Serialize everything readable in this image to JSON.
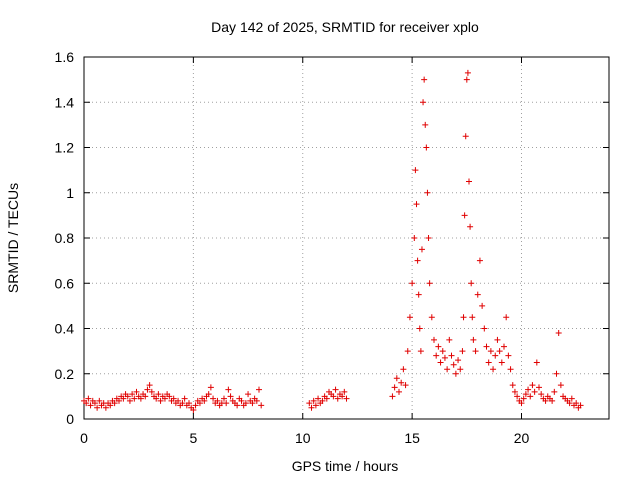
{
  "chart_data": {
    "type": "scatter",
    "title": "Day 142 of 2025, SRMTID for receiver xplo",
    "xlabel": "GPS time / hours",
    "ylabel": "SRMTID / TECUs",
    "xlim": [
      0,
      24
    ],
    "ylim": [
      0,
      1.6
    ],
    "xticks": [
      0,
      5,
      10,
      15,
      20
    ],
    "xtick_labels": [
      "0",
      "5",
      "10",
      "15",
      "20"
    ],
    "yticks": [
      0,
      0.2,
      0.4,
      0.6,
      0.8,
      1,
      1.2,
      1.4,
      1.6
    ],
    "ytick_labels": [
      "0",
      "0.2",
      "0.4",
      "0.6",
      "0.8",
      "1",
      "1.2",
      "1.4",
      "1.6"
    ],
    "grid": true,
    "marker": "plus",
    "color": "#e00000",
    "series": [
      {
        "name": "SRMTID",
        "points": [
          [
            0.0,
            0.08
          ],
          [
            0.1,
            0.07
          ],
          [
            0.2,
            0.09
          ],
          [
            0.3,
            0.06
          ],
          [
            0.4,
            0.08
          ],
          [
            0.5,
            0.07
          ],
          [
            0.6,
            0.05
          ],
          [
            0.7,
            0.08
          ],
          [
            0.8,
            0.06
          ],
          [
            0.9,
            0.07
          ],
          [
            1.0,
            0.05
          ],
          [
            1.1,
            0.07
          ],
          [
            1.2,
            0.06
          ],
          [
            1.3,
            0.08
          ],
          [
            1.4,
            0.07
          ],
          [
            1.5,
            0.09
          ],
          [
            1.6,
            0.08
          ],
          [
            1.7,
            0.1
          ],
          [
            1.8,
            0.09
          ],
          [
            1.9,
            0.11
          ],
          [
            2.0,
            0.1
          ],
          [
            2.1,
            0.08
          ],
          [
            2.2,
            0.11
          ],
          [
            2.3,
            0.09
          ],
          [
            2.4,
            0.12
          ],
          [
            2.5,
            0.1
          ],
          [
            2.6,
            0.09
          ],
          [
            2.7,
            0.11
          ],
          [
            2.8,
            0.1
          ],
          [
            2.9,
            0.13
          ],
          [
            3.0,
            0.15
          ],
          [
            3.1,
            0.12
          ],
          [
            3.2,
            0.1
          ],
          [
            3.3,
            0.09
          ],
          [
            3.4,
            0.11
          ],
          [
            3.5,
            0.08
          ],
          [
            3.6,
            0.1
          ],
          [
            3.7,
            0.09
          ],
          [
            3.8,
            0.11
          ],
          [
            3.9,
            0.1
          ],
          [
            4.0,
            0.08
          ],
          [
            4.1,
            0.09
          ],
          [
            4.2,
            0.07
          ],
          [
            4.3,
            0.08
          ],
          [
            4.4,
            0.06
          ],
          [
            4.5,
            0.07
          ],
          [
            4.6,
            0.09
          ],
          [
            4.7,
            0.06
          ],
          [
            4.8,
            0.07
          ],
          [
            4.9,
            0.05
          ],
          [
            5.0,
            0.04
          ],
          [
            5.1,
            0.06
          ],
          [
            5.2,
            0.08
          ],
          [
            5.3,
            0.07
          ],
          [
            5.4,
            0.09
          ],
          [
            5.5,
            0.08
          ],
          [
            5.6,
            0.1
          ],
          [
            5.7,
            0.11
          ],
          [
            5.8,
            0.14
          ],
          [
            5.9,
            0.09
          ],
          [
            6.0,
            0.07
          ],
          [
            6.1,
            0.08
          ],
          [
            6.2,
            0.06
          ],
          [
            6.3,
            0.07
          ],
          [
            6.4,
            0.09
          ],
          [
            6.5,
            0.07
          ],
          [
            6.6,
            0.13
          ],
          [
            6.7,
            0.1
          ],
          [
            6.8,
            0.08
          ],
          [
            6.9,
            0.07
          ],
          [
            7.0,
            0.06
          ],
          [
            7.1,
            0.09
          ],
          [
            7.2,
            0.08
          ],
          [
            7.3,
            0.06
          ],
          [
            7.4,
            0.07
          ],
          [
            7.5,
            0.11
          ],
          [
            7.6,
            0.08
          ],
          [
            7.7,
            0.07
          ],
          [
            7.8,
            0.09
          ],
          [
            7.9,
            0.08
          ],
          [
            8.0,
            0.13
          ],
          [
            8.1,
            0.06
          ],
          [
            10.3,
            0.07
          ],
          [
            10.4,
            0.05
          ],
          [
            10.5,
            0.08
          ],
          [
            10.6,
            0.06
          ],
          [
            10.7,
            0.09
          ],
          [
            10.8,
            0.07
          ],
          [
            10.9,
            0.08
          ],
          [
            11.0,
            0.1
          ],
          [
            11.1,
            0.09
          ],
          [
            11.2,
            0.12
          ],
          [
            11.3,
            0.11
          ],
          [
            11.4,
            0.1
          ],
          [
            11.5,
            0.13
          ],
          [
            11.6,
            0.09
          ],
          [
            11.7,
            0.11
          ],
          [
            11.8,
            0.1
          ],
          [
            11.9,
            0.12
          ],
          [
            12.0,
            0.09
          ],
          [
            14.1,
            0.1
          ],
          [
            14.2,
            0.14
          ],
          [
            14.3,
            0.18
          ],
          [
            14.4,
            0.12
          ],
          [
            14.5,
            0.16
          ],
          [
            14.6,
            0.22
          ],
          [
            14.7,
            0.15
          ],
          [
            14.8,
            0.3
          ],
          [
            14.9,
            0.45
          ],
          [
            15.0,
            0.6
          ],
          [
            15.1,
            0.8
          ],
          [
            15.15,
            1.1
          ],
          [
            15.2,
            0.95
          ],
          [
            15.25,
            0.7
          ],
          [
            15.3,
            0.55
          ],
          [
            15.35,
            0.4
          ],
          [
            15.4,
            0.3
          ],
          [
            15.45,
            0.75
          ],
          [
            15.5,
            1.4
          ],
          [
            15.55,
            1.5
          ],
          [
            15.6,
            1.3
          ],
          [
            15.65,
            1.2
          ],
          [
            15.7,
            1.0
          ],
          [
            15.75,
            0.8
          ],
          [
            15.8,
            0.6
          ],
          [
            15.9,
            0.45
          ],
          [
            16.0,
            0.35
          ],
          [
            16.1,
            0.28
          ],
          [
            16.2,
            0.32
          ],
          [
            16.3,
            0.25
          ],
          [
            16.4,
            0.3
          ],
          [
            16.5,
            0.27
          ],
          [
            16.6,
            0.22
          ],
          [
            16.7,
            0.35
          ],
          [
            16.8,
            0.28
          ],
          [
            16.9,
            0.24
          ],
          [
            17.0,
            0.2
          ],
          [
            17.1,
            0.26
          ],
          [
            17.2,
            0.22
          ],
          [
            17.3,
            0.3
          ],
          [
            17.35,
            0.45
          ],
          [
            17.4,
            0.9
          ],
          [
            17.45,
            1.25
          ],
          [
            17.5,
            1.5
          ],
          [
            17.55,
            1.53
          ],
          [
            17.6,
            1.05
          ],
          [
            17.65,
            0.85
          ],
          [
            17.7,
            0.6
          ],
          [
            17.75,
            0.45
          ],
          [
            17.8,
            0.35
          ],
          [
            17.9,
            0.3
          ],
          [
            18.0,
            0.55
          ],
          [
            18.1,
            0.7
          ],
          [
            18.2,
            0.5
          ],
          [
            18.3,
            0.4
          ],
          [
            18.4,
            0.32
          ],
          [
            18.5,
            0.25
          ],
          [
            18.6,
            0.3
          ],
          [
            18.7,
            0.22
          ],
          [
            18.8,
            0.28
          ],
          [
            18.9,
            0.35
          ],
          [
            19.0,
            0.3
          ],
          [
            19.1,
            0.25
          ],
          [
            19.2,
            0.32
          ],
          [
            19.3,
            0.45
          ],
          [
            19.4,
            0.28
          ],
          [
            19.5,
            0.22
          ],
          [
            19.6,
            0.15
          ],
          [
            19.7,
            0.12
          ],
          [
            19.8,
            0.1
          ],
          [
            19.9,
            0.08
          ],
          [
            20.0,
            0.07
          ],
          [
            20.1,
            0.09
          ],
          [
            20.2,
            0.11
          ],
          [
            20.3,
            0.13
          ],
          [
            20.4,
            0.1
          ],
          [
            20.5,
            0.15
          ],
          [
            20.6,
            0.12
          ],
          [
            20.7,
            0.25
          ],
          [
            20.8,
            0.14
          ],
          [
            20.9,
            0.11
          ],
          [
            21.0,
            0.09
          ],
          [
            21.1,
            0.08
          ],
          [
            21.2,
            0.1
          ],
          [
            21.3,
            0.09
          ],
          [
            21.4,
            0.08
          ],
          [
            21.5,
            0.12
          ],
          [
            21.6,
            0.2
          ],
          [
            21.7,
            0.38
          ],
          [
            21.8,
            0.15
          ],
          [
            21.9,
            0.1
          ],
          [
            22.0,
            0.09
          ],
          [
            22.1,
            0.08
          ],
          [
            22.2,
            0.07
          ],
          [
            22.3,
            0.09
          ],
          [
            22.4,
            0.06
          ],
          [
            22.5,
            0.07
          ],
          [
            22.6,
            0.05
          ],
          [
            22.7,
            0.06
          ]
        ]
      }
    ]
  }
}
